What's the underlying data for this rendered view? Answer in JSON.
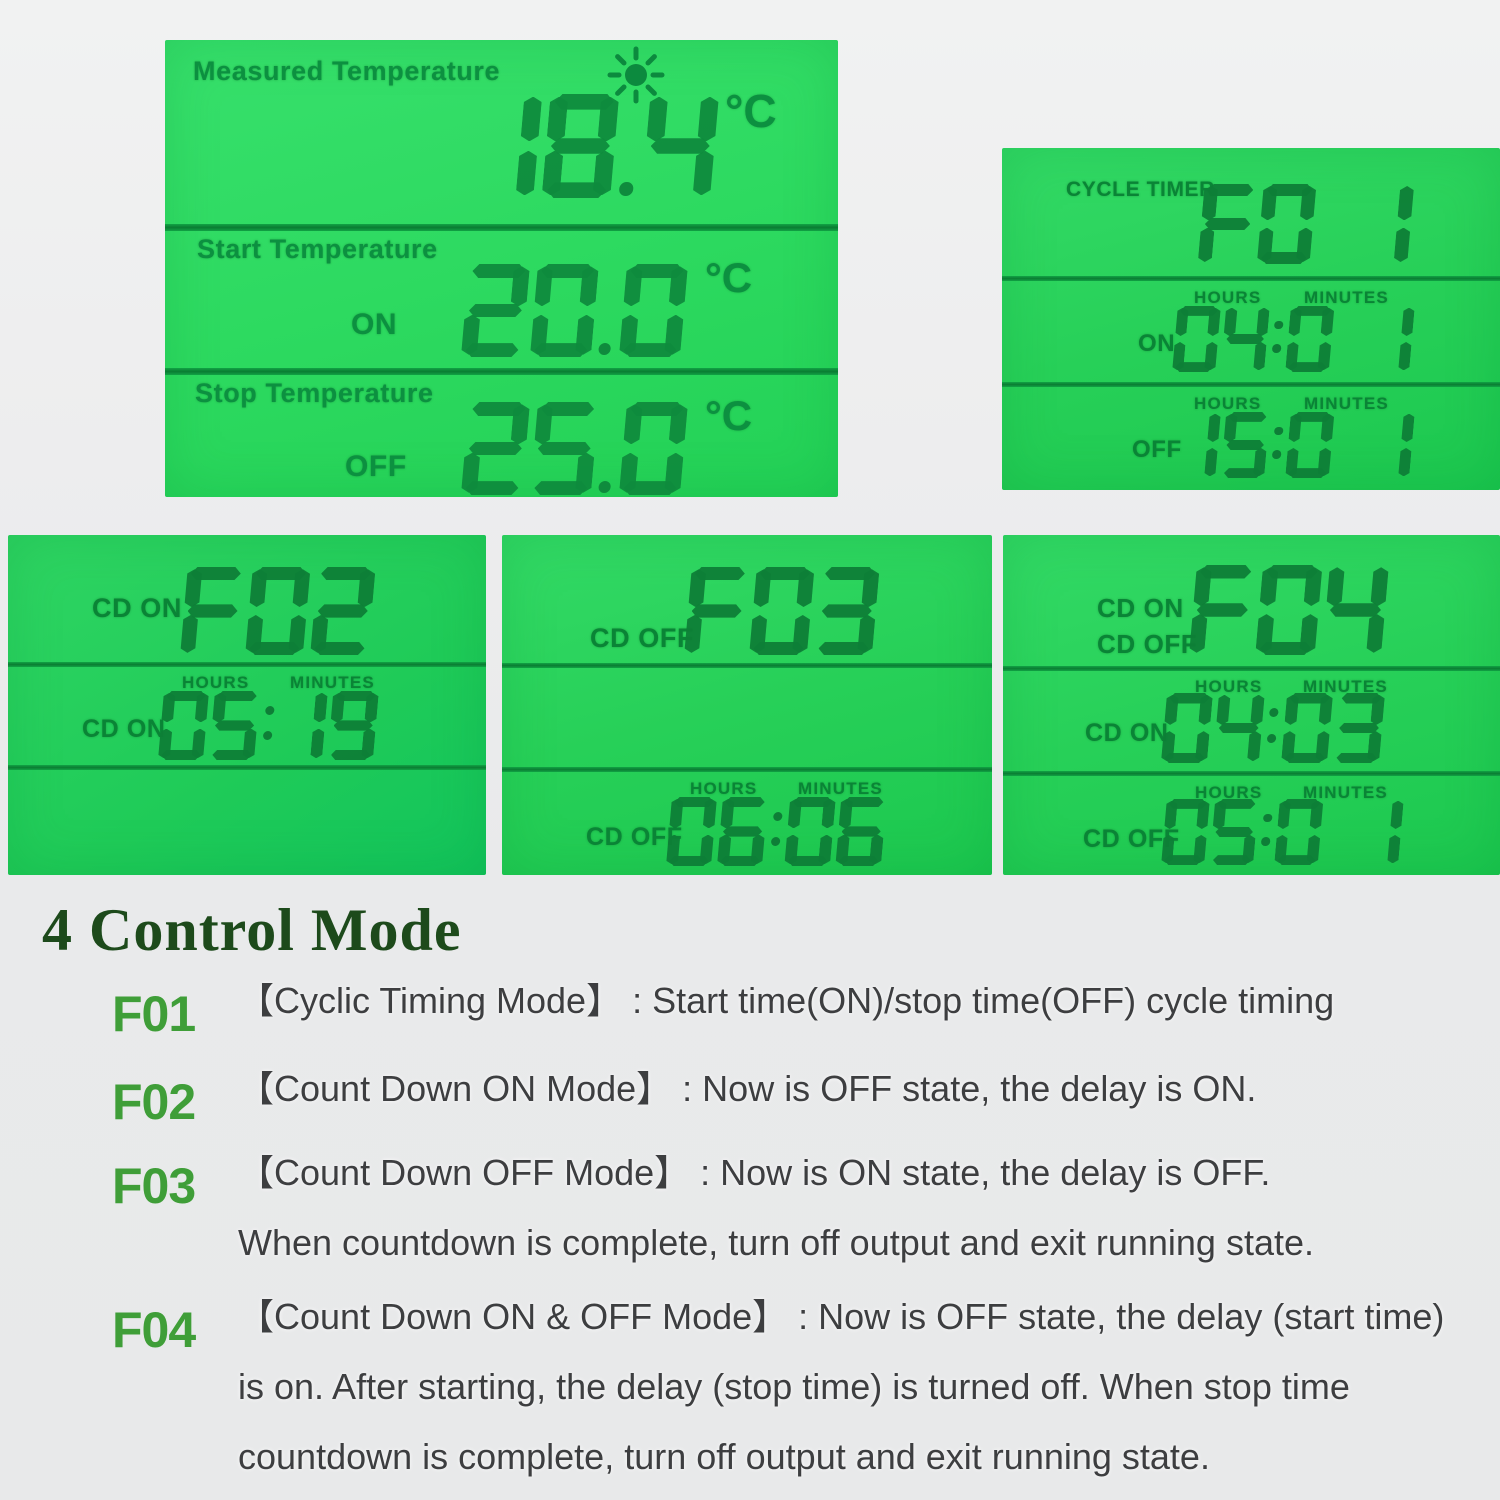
{
  "screens": {
    "temperature": {
      "measured": {
        "label": "Measured Temperature",
        "value": "18.4",
        "unit": "°C"
      },
      "start": {
        "label": "Start Temperature",
        "state": "ON",
        "value": "20.0",
        "unit": "°C"
      },
      "stop": {
        "label": "Stop Temperature",
        "state": "OFF",
        "value": "25.0",
        "unit": "°C"
      }
    },
    "cycle_timer": {
      "title": "CYCLE TIMER",
      "mode": "F0 1",
      "on_row": {
        "hours": "HOURS",
        "minutes": "MINUTES",
        "state": "ON",
        "time": "04:0 1"
      },
      "off_row": {
        "hours": "HOURS",
        "minutes": "MINUTES",
        "state": "OFF",
        "time": "15:0 1"
      }
    },
    "count_down_on": {
      "state": "CD ON",
      "mode": "F02",
      "row": {
        "hours": "HOURS",
        "minutes": "MINUTES",
        "state": "CD ON",
        "time": "05:19"
      }
    },
    "count_down_off": {
      "state": "CD OFF",
      "mode": "F03",
      "row": {
        "hours": "HOURS",
        "minutes": "MINUTES",
        "state": "CD OFF",
        "time": "06:06"
      }
    },
    "count_down_on_off": {
      "state_on": "CD ON",
      "state_off": "CD OFF",
      "mode": "F04",
      "on_row": {
        "hours": "HOURS",
        "minutes": "MINUTES",
        "state": "CD ON",
        "time": "04:03"
      },
      "off_row": {
        "hours": "HOURS",
        "minutes": "MINUTES",
        "state": "CD OFF",
        "time": "05:0 1"
      }
    }
  },
  "info": {
    "heading": "4 Control Mode",
    "items": [
      {
        "code": "F01",
        "lines": [
          "【Cyclic Timing Mode】 : Start time(ON)/stop time(OFF) cycle timing"
        ]
      },
      {
        "code": "F02",
        "lines": [
          "【Count Down ON Mode】 : Now is OFF state, the delay is ON."
        ]
      },
      {
        "code": "F03",
        "lines": [
          "【Count Down OFF Mode】 : Now is ON state, the delay is OFF.",
          "When countdown is complete, turn off output and exit running state."
        ]
      },
      {
        "code": "F04",
        "lines": [
          "【Count Down ON & OFF Mode】 : Now is OFF state, the delay (start time)",
          "is on. After starting, the delay (stop time) is turned off. When stop time",
          "countdown is complete, turn off output and exit running state."
        ]
      }
    ]
  },
  "colors": {
    "lcd_green": "#2bd15f",
    "lcd_segment": "#0e7e37",
    "heading_green": "#1d4a1b",
    "code_green": "#3f9e38",
    "body_text": "#3d3e40"
  }
}
